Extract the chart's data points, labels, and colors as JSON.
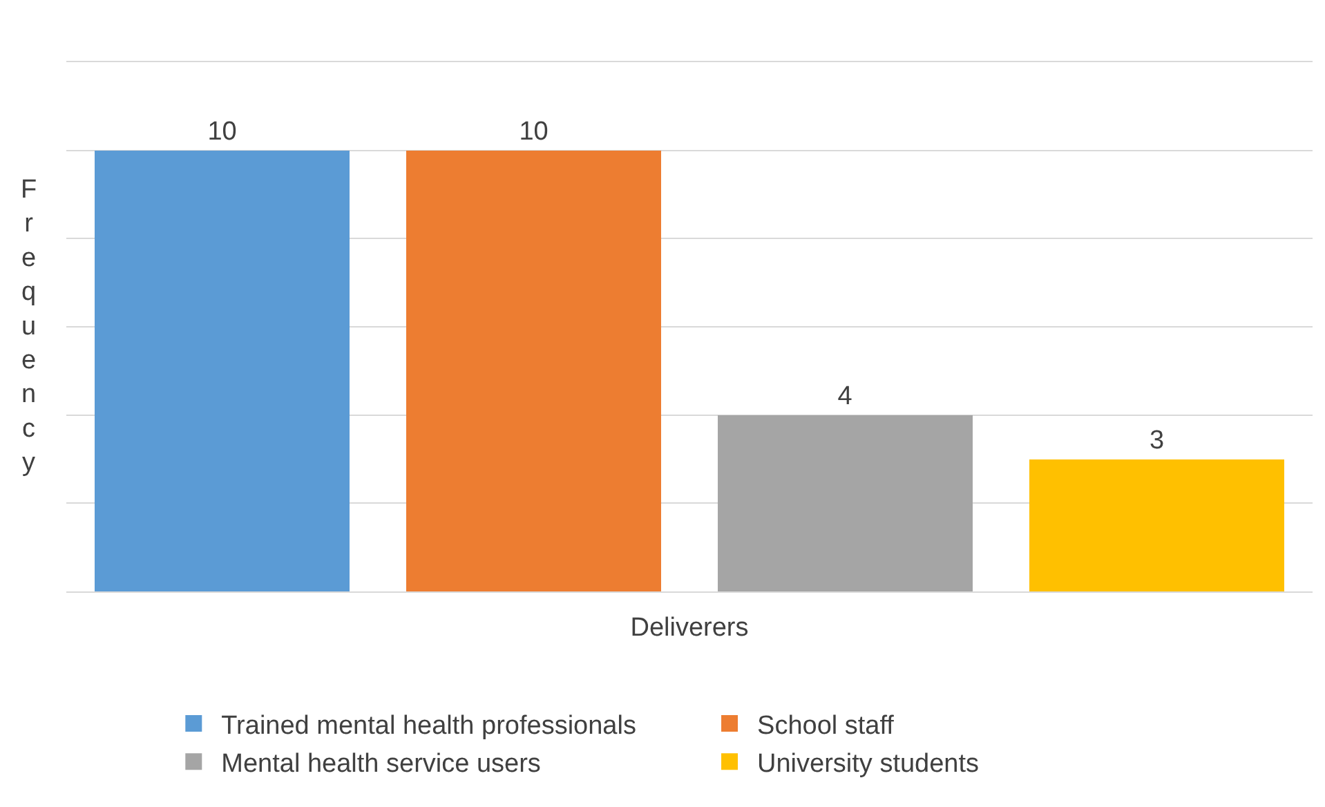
{
  "chart_data": {
    "type": "bar",
    "xlabel": "Deliverers",
    "ylabel": "Frequency",
    "categories": [
      null,
      null,
      null,
      null
    ],
    "series": [
      {
        "name": "Trained mental health professionals",
        "color": "#5b9bd5",
        "values": [
          10,
          null,
          null,
          null
        ]
      },
      {
        "name": "School staff",
        "color": "#ed7d31",
        "values": [
          null,
          10,
          null,
          null
        ]
      },
      {
        "name": "Mental health service users",
        "color": "#a5a5a5",
        "values": [
          null,
          null,
          4,
          null
        ]
      },
      {
        "name": "University students",
        "color": "#ffc000",
        "values": [
          null,
          null,
          null,
          3
        ]
      }
    ],
    "stacked": true,
    "ylim": [
      0,
      12
    ],
    "yticks": [
      {
        "value": 0,
        "label": null
      },
      {
        "value": 2,
        "label": null
      },
      {
        "value": 4,
        "label": null
      },
      {
        "value": 6,
        "label": null
      },
      {
        "value": 8,
        "label": null
      },
      {
        "value": 10,
        "label": null
      },
      {
        "value": 12,
        "label": null
      }
    ],
    "grid": "y",
    "legend": "bottom",
    "data_labels": true,
    "tick_labels": false
  }
}
